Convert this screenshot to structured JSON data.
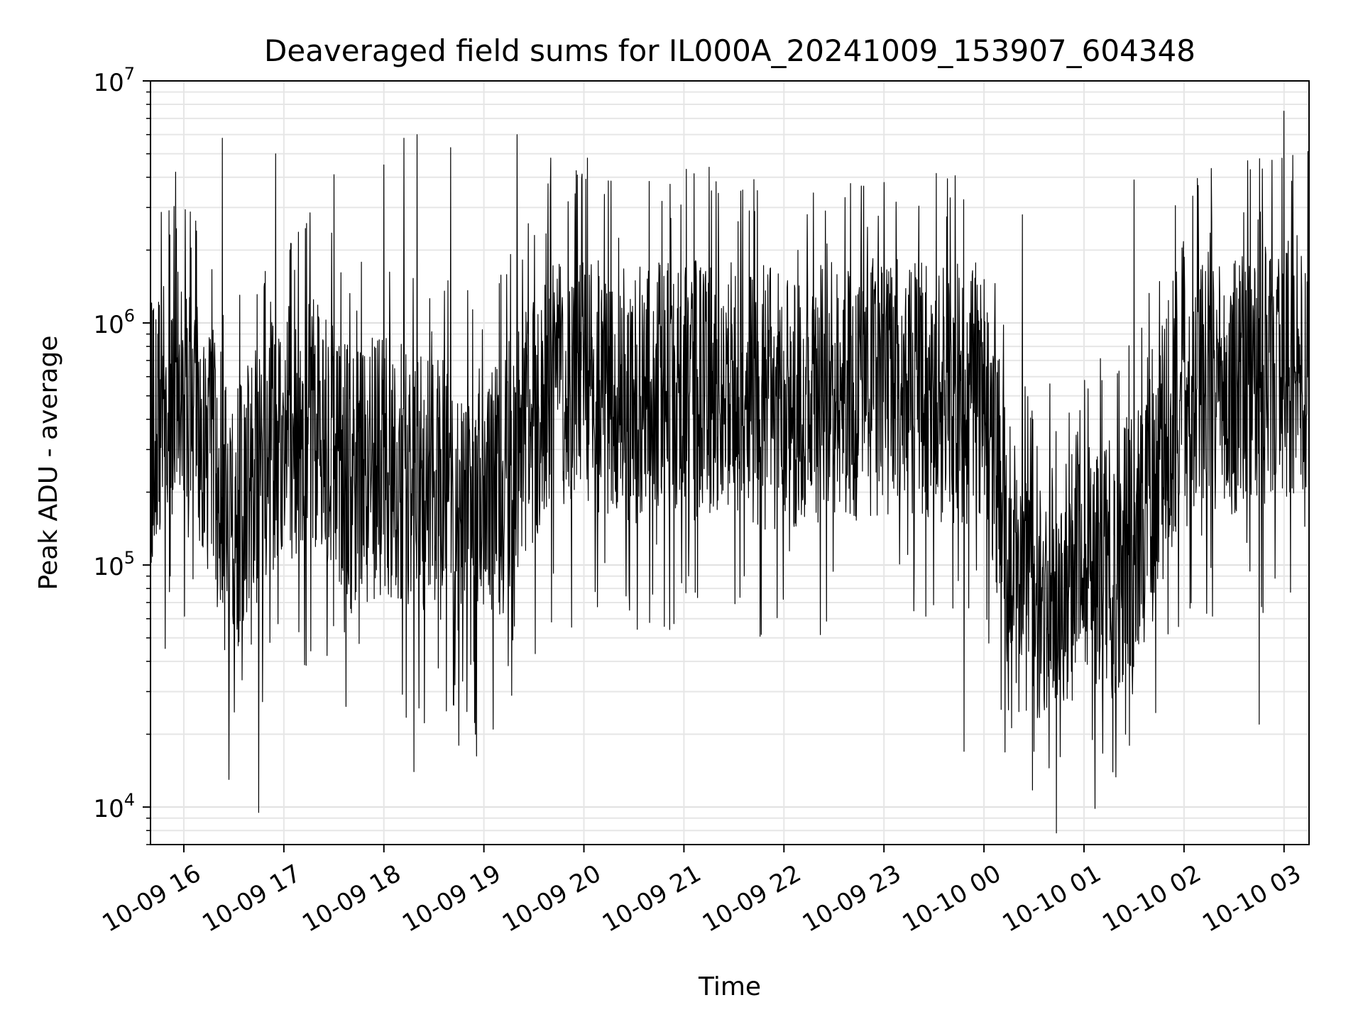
{
  "chart_data": {
    "type": "line",
    "title": "Deaveraged field sums for IL000A_20241009_153907_604348",
    "xlabel": "Time",
    "ylabel": "Peak ADU - average",
    "yscale": "log",
    "ylim": [
      7000,
      10000000
    ],
    "xlim": [
      "2024-10-09 15:40",
      "2024-10-10 03:15"
    ],
    "grid": true,
    "line_color": "#000000",
    "y_ticks": [
      {
        "value": 10000,
        "base": "10",
        "exp": "4"
      },
      {
        "value": 100000,
        "base": "10",
        "exp": "5"
      },
      {
        "value": 1000000,
        "base": "10",
        "exp": "6"
      },
      {
        "value": 10000000,
        "base": "10",
        "exp": "7"
      }
    ],
    "x_ticks": [
      {
        "time": "2024-10-09 16:00",
        "label": "10-09 16"
      },
      {
        "time": "2024-10-09 17:00",
        "label": "10-09 17"
      },
      {
        "time": "2024-10-09 18:00",
        "label": "10-09 18"
      },
      {
        "time": "2024-10-09 19:00",
        "label": "10-09 19"
      },
      {
        "time": "2024-10-09 20:00",
        "label": "10-09 20"
      },
      {
        "time": "2024-10-09 21:00",
        "label": "10-09 21"
      },
      {
        "time": "2024-10-09 22:00",
        "label": "10-09 22"
      },
      {
        "time": "2024-10-09 23:00",
        "label": "10-09 23"
      },
      {
        "time": "2024-10-10 00:00",
        "label": "10-10 00"
      },
      {
        "time": "2024-10-10 01:00",
        "label": "10-10 01"
      },
      {
        "time": "2024-10-10 02:00",
        "label": "10-10 02"
      },
      {
        "time": "2024-10-10 03:00",
        "label": "10-10 03"
      }
    ],
    "series": [
      {
        "x": [
          "2024-10-09 15:40",
          "2024-10-09 16:00",
          "2024-10-09 16:15",
          "2024-10-09 16:30",
          "2024-10-09 16:45",
          "2024-10-09 17:00",
          "2024-10-09 17:20",
          "2024-10-09 17:40",
          "2024-10-09 18:00",
          "2024-10-09 18:20",
          "2024-10-09 18:40",
          "2024-10-09 19:00",
          "2024-10-09 19:20",
          "2024-10-09 19:40",
          "2024-10-09 20:00",
          "2024-10-09 20:30",
          "2024-10-09 21:00",
          "2024-10-09 21:30",
          "2024-10-09 22:00",
          "2024-10-09 22:30",
          "2024-10-09 23:00",
          "2024-10-09 23:30",
          "2024-10-10 00:00",
          "2024-10-10 00:20",
          "2024-10-10 00:40",
          "2024-10-10 01:00",
          "2024-10-10 01:20",
          "2024-10-10 01:40",
          "2024-10-10 02:00",
          "2024-10-10 02:20",
          "2024-10-10 02:40",
          "2024-10-10 03:00",
          "2024-10-10 03:15"
        ],
        "y": [
          350000,
          500000,
          300000,
          150000,
          250000,
          350000,
          400000,
          220000,
          260000,
          220000,
          200000,
          150000,
          300000,
          500000,
          550000,
          500000,
          550000,
          520000,
          480000,
          520000,
          560000,
          520000,
          500000,
          80000,
          70000,
          90000,
          100000,
          180000,
          650000,
          560000,
          600000,
          650000,
          700000
        ]
      }
    ],
    "peaks": [
      {
        "x": "2024-10-09 15:55",
        "y": 4200000
      },
      {
        "x": "2024-10-09 16:23",
        "y": 5800000
      },
      {
        "x": "2024-10-09 16:55",
        "y": 5000000
      },
      {
        "x": "2024-10-09 17:30",
        "y": 4100000
      },
      {
        "x": "2024-10-09 18:00",
        "y": 4500000
      },
      {
        "x": "2024-10-09 18:12",
        "y": 5800000
      },
      {
        "x": "2024-10-09 18:20",
        "y": 6000000
      },
      {
        "x": "2024-10-09 18:40",
        "y": 5300000
      },
      {
        "x": "2024-10-09 19:20",
        "y": 6000000
      },
      {
        "x": "2024-10-09 19:40",
        "y": 4800000
      },
      {
        "x": "2024-10-09 20:02",
        "y": 4800000
      },
      {
        "x": "2024-10-09 21:15",
        "y": 4400000
      },
      {
        "x": "2024-10-10 00:23",
        "y": 2800000
      },
      {
        "x": "2024-10-10 01:30",
        "y": 3900000
      },
      {
        "x": "2024-10-10 03:00",
        "y": 7500000
      }
    ],
    "dips": [
      {
        "x": "2024-10-09 16:27",
        "y": 13000
      },
      {
        "x": "2024-10-09 16:45",
        "y": 9500
      },
      {
        "x": "2024-10-09 18:18",
        "y": 14000
      },
      {
        "x": "2024-10-09 18:45",
        "y": 18000
      },
      {
        "x": "2024-10-09 18:55",
        "y": 20000
      },
      {
        "x": "2024-10-09 23:48",
        "y": 17000
      },
      {
        "x": "2024-10-10 00:30",
        "y": 17000
      },
      {
        "x": "2024-10-10 01:05",
        "y": 19000
      },
      {
        "x": "2024-10-10 01:25",
        "y": 20000
      },
      {
        "x": "2024-10-10 02:45",
        "y": 22000
      }
    ]
  }
}
